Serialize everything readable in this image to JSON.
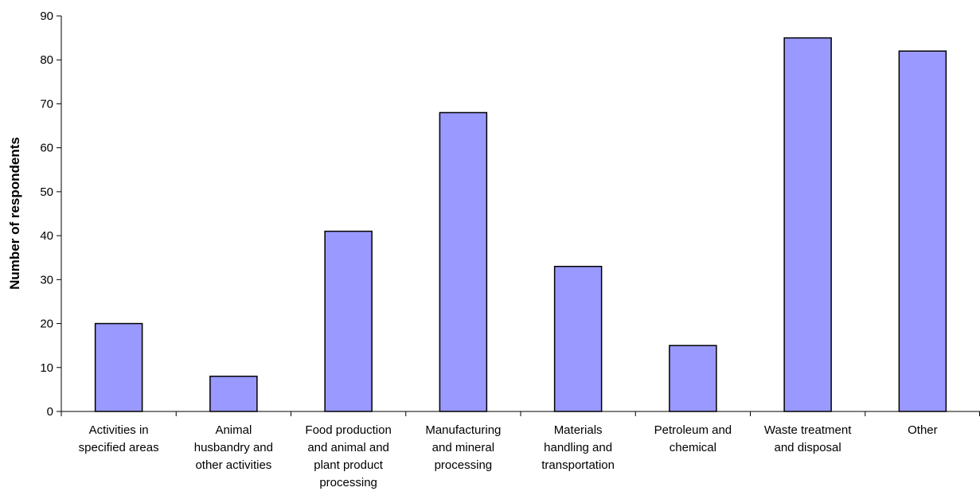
{
  "chart_data": {
    "type": "bar",
    "categories": [
      [
        "Activities in",
        "specified areas"
      ],
      [
        "Animal",
        "husbandry and",
        "other activities"
      ],
      [
        "Food production",
        "and animal and",
        "plant product",
        "processing"
      ],
      [
        "Manufacturing",
        "and mineral",
        "processing"
      ],
      [
        "Materials",
        "handling and",
        "transportation"
      ],
      [
        "Petroleum and",
        "chemical"
      ],
      [
        "Waste treatment",
        "and disposal"
      ],
      [
        "Other"
      ]
    ],
    "values": [
      20,
      8,
      41,
      68,
      33,
      15,
      85,
      82
    ],
    "ylabel": "Number of respondents",
    "xlabel": "",
    "ylim": [
      0,
      90
    ],
    "yticks": [
      0,
      10,
      20,
      30,
      40,
      50,
      60,
      70,
      80,
      90
    ],
    "grid": false,
    "legend": "none",
    "colors": {
      "bar_fill": "#9999ff",
      "bar_stroke": "#000000",
      "axis": "#000000"
    }
  }
}
